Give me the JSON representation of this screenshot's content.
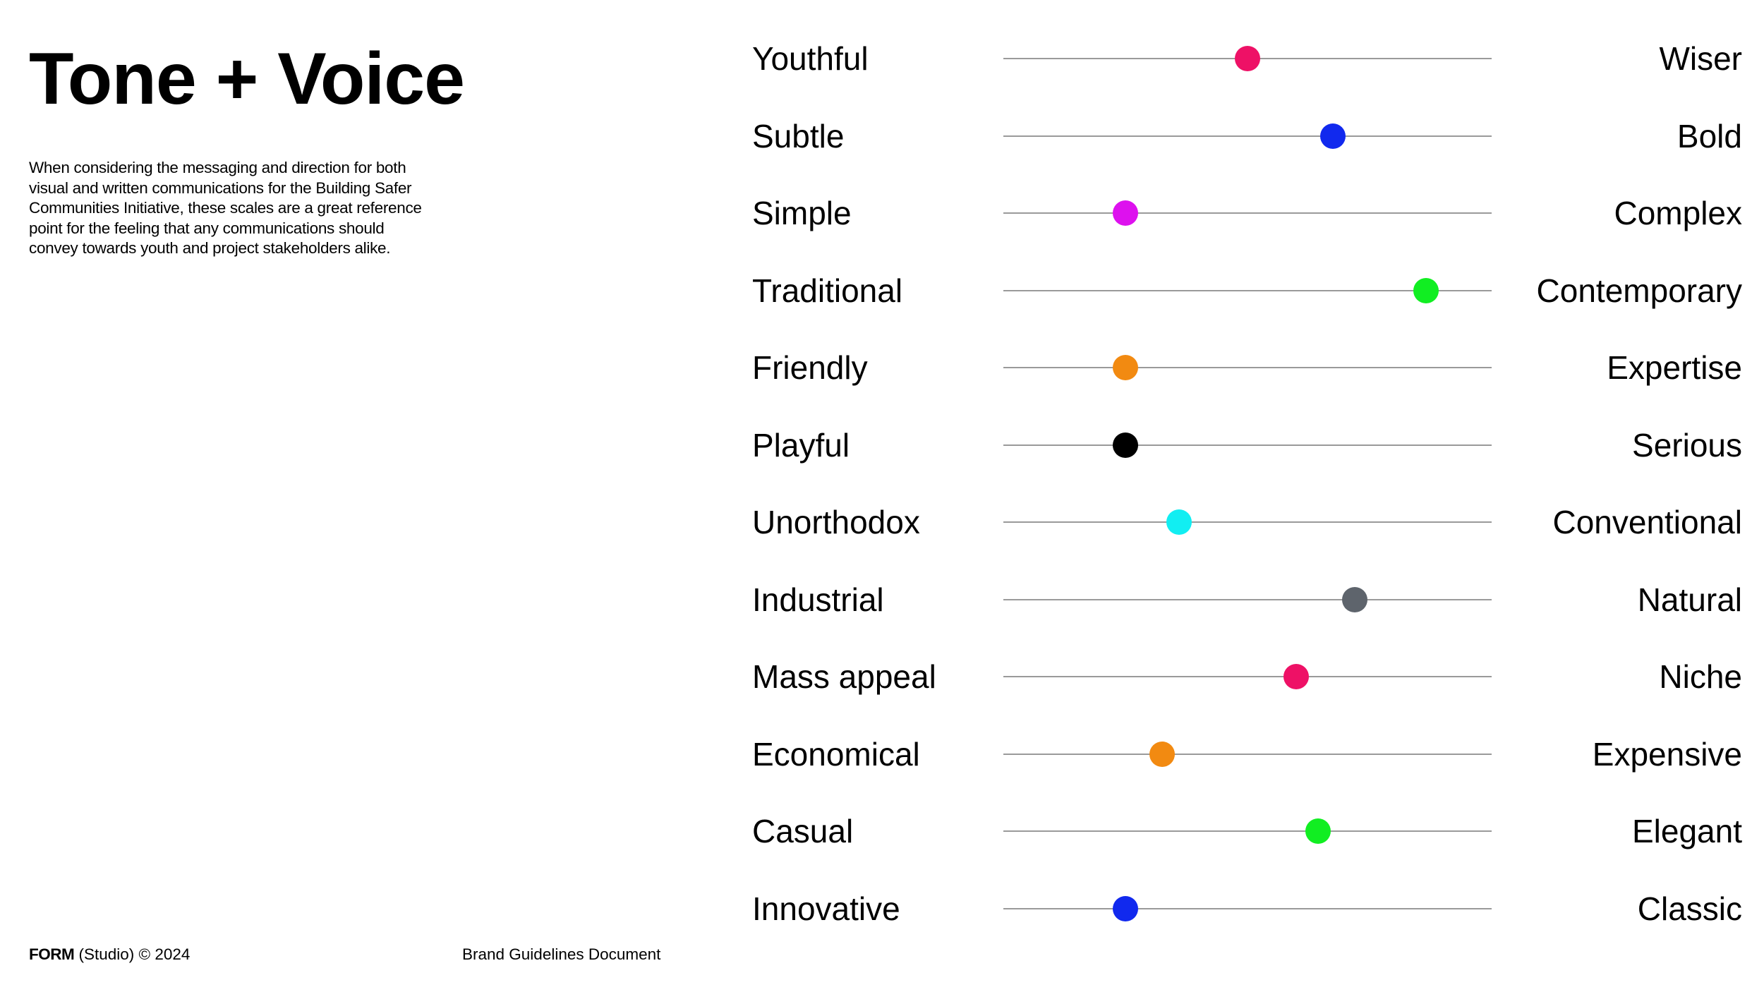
{
  "page": {
    "title": "Tone + Voice",
    "intro": "When considering the messaging and direction for both visual and written communications for the Building Safer Communities Initiative, these scales are a great reference point for the feeling that any communications should convey towards youth and project stakeholders alike."
  },
  "scales": [
    {
      "left": "Youthful",
      "right": "Wiser",
      "value": 0.5,
      "color": "#ee1166"
    },
    {
      "left": "Subtle",
      "right": "Bold",
      "value": 0.675,
      "color": "#1129ee"
    },
    {
      "left": "Simple",
      "right": "Complex",
      "value": 0.25,
      "color": "#dd11ee"
    },
    {
      "left": "Traditional",
      "right": "Contemporary",
      "value": 0.865,
      "color": "#11ee22"
    },
    {
      "left": "Friendly",
      "right": "Expertise",
      "value": 0.25,
      "color": "#f28a11"
    },
    {
      "left": "Playful",
      "right": "Serious",
      "value": 0.25,
      "color": "#000000"
    },
    {
      "left": "Unorthodox",
      "right": "Conventional",
      "value": 0.36,
      "color": "#11eef2"
    },
    {
      "left": "Industrial",
      "right": "Natural",
      "value": 0.72,
      "color": "#5e646c"
    },
    {
      "left": "Mass appeal",
      "right": "Niche",
      "value": 0.6,
      "color": "#ee1166"
    },
    {
      "left": "Economical",
      "right": "Expensive",
      "value": 0.325,
      "color": "#f28a11"
    },
    {
      "left": "Casual",
      "right": "Elegant",
      "value": 0.645,
      "color": "#11ee22"
    },
    {
      "left": "Innovative",
      "right": "Classic",
      "value": 0.25,
      "color": "#1129ee"
    }
  ],
  "footer": {
    "brand": "FORM",
    "studio": " (Studio) © 2024",
    "document": "Brand Guidelines Document"
  }
}
